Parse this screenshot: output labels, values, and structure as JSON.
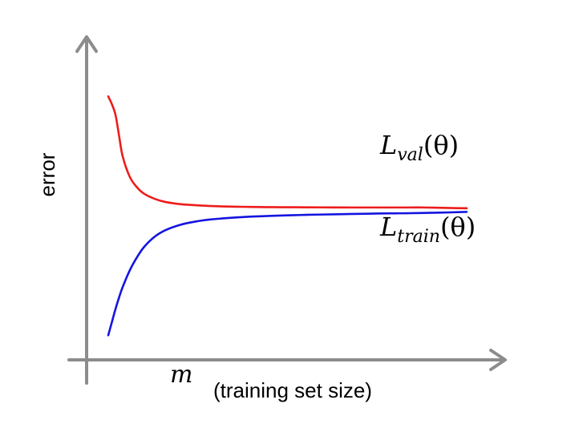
{
  "chart_data": {
    "type": "line",
    "title": "",
    "ylabel": "error",
    "xlabel": {
      "symbol": "m",
      "text": "(training set size)"
    },
    "axis_ticks": "none",
    "grid": false,
    "legend": "none",
    "x": [
      0,
      1,
      2,
      3,
      4,
      6,
      8,
      10,
      13,
      16,
      20,
      24,
      28,
      32,
      36,
      40,
      44,
      48,
      52,
      56,
      60,
      64,
      68,
      72,
      76,
      80,
      84,
      88,
      92,
      96,
      100
    ],
    "series": [
      {
        "name": "L_val(θ)",
        "color": "#ee1c1c",
        "label_parts": {
          "main": "L",
          "sub": "val",
          "arg": "(θ)"
        },
        "values": [
          0.95,
          0.92,
          0.88,
          0.8,
          0.72,
          0.64,
          0.6,
          0.575,
          0.555,
          0.543,
          0.535,
          0.531,
          0.528,
          0.526,
          0.525,
          0.524,
          0.5235,
          0.523,
          0.5228,
          0.5226,
          0.5224,
          0.5222,
          0.522,
          0.522,
          0.522,
          0.522,
          0.522,
          0.522,
          0.521,
          0.52,
          0.519
        ]
      },
      {
        "name": "L_train(θ)",
        "color": "#1414e0",
        "label_parts": {
          "main": "L",
          "sub": "train",
          "arg": "(θ)"
        },
        "values": [
          0.03,
          0.08,
          0.13,
          0.175,
          0.215,
          0.28,
          0.33,
          0.37,
          0.41,
          0.435,
          0.455,
          0.467,
          0.475,
          0.48,
          0.484,
          0.487,
          0.489,
          0.491,
          0.4925,
          0.494,
          0.495,
          0.496,
          0.497,
          0.498,
          0.499,
          0.4995,
          0.5,
          0.501,
          0.502,
          0.5035,
          0.505
        ]
      }
    ],
    "xlim": [
      0,
      100
    ],
    "ylim": [
      0,
      1
    ]
  }
}
